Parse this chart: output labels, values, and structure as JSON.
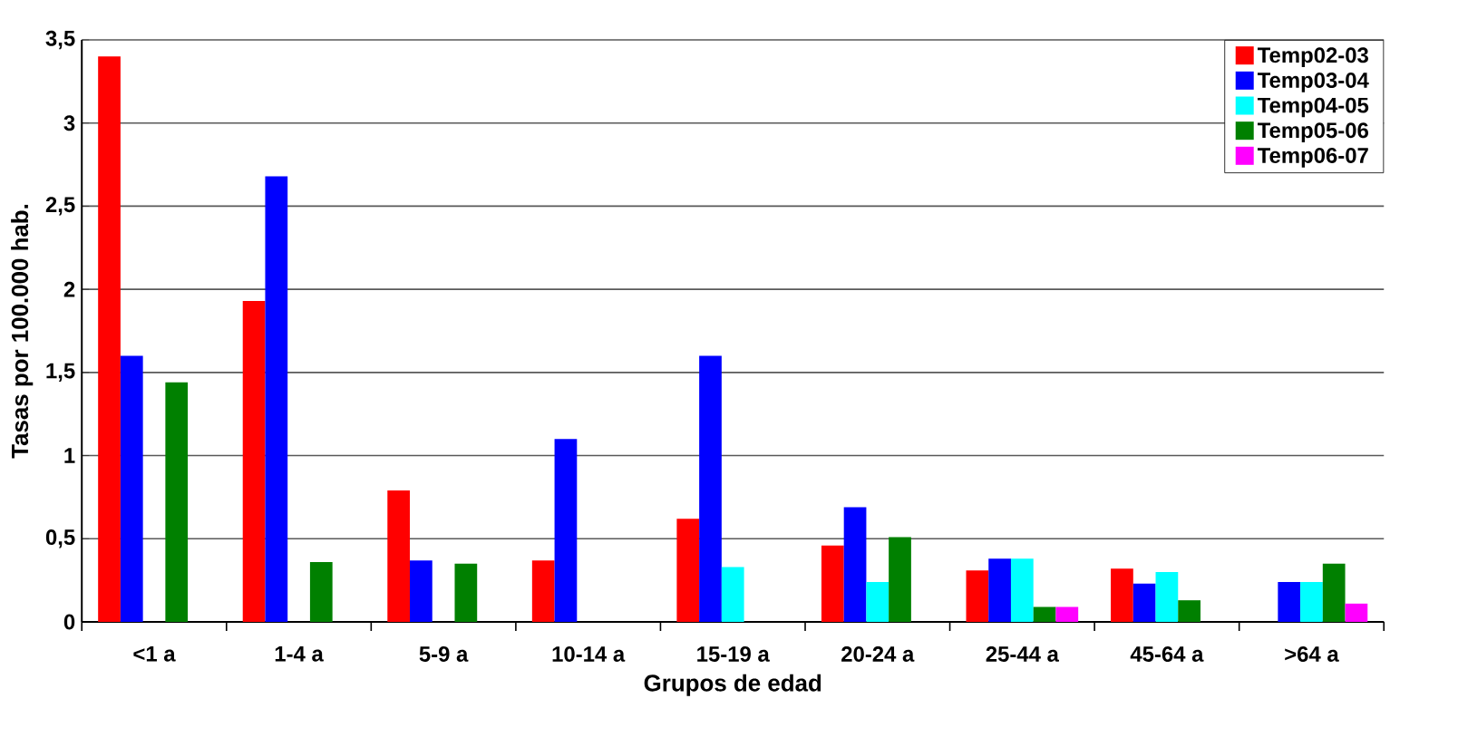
{
  "chart_data": {
    "type": "bar",
    "xlabel": "Grupos de edad",
    "ylabel": "Tasas por 100.000 hab.",
    "categories": [
      "<1 a",
      "1-4 a",
      "5-9 a",
      "10-14 a",
      "15-19 a",
      "20-24 a",
      "25-44 a",
      "45-64 a",
      ">64 a"
    ],
    "series": [
      {
        "name": "Temp02-03",
        "color": "#ff0000",
        "values": [
          3.4,
          1.93,
          0.79,
          0.37,
          0.62,
          0.46,
          0.31,
          0.32,
          null
        ]
      },
      {
        "name": "Temp03-04",
        "color": "#0000ff",
        "values": [
          1.6,
          2.68,
          0.37,
          1.1,
          1.6,
          0.69,
          0.38,
          0.23,
          0.24
        ]
      },
      {
        "name": "Temp04-05",
        "color": "#00ffff",
        "values": [
          null,
          null,
          null,
          null,
          0.33,
          0.24,
          0.38,
          0.3,
          0.24
        ]
      },
      {
        "name": "Temp05-06",
        "color": "#008000",
        "values": [
          1.44,
          0.36,
          0.35,
          null,
          null,
          0.51,
          0.09,
          0.13,
          0.35
        ]
      },
      {
        "name": "Temp06-07",
        "color": "#ff00ff",
        "values": [
          null,
          null,
          null,
          null,
          null,
          null,
          0.09,
          null,
          0.11
        ]
      }
    ],
    "ylim": [
      0,
      3.5
    ],
    "yticks": [
      0,
      {
        "value": 0.5,
        "label": "0,5"
      },
      1,
      {
        "value": 1.5,
        "label": "1,5"
      },
      2,
      {
        "value": 2.5,
        "label": "2,5"
      },
      3,
      {
        "value": 3.5,
        "label": "3,5"
      }
    ],
    "grid": "y",
    "legend": "top right"
  }
}
